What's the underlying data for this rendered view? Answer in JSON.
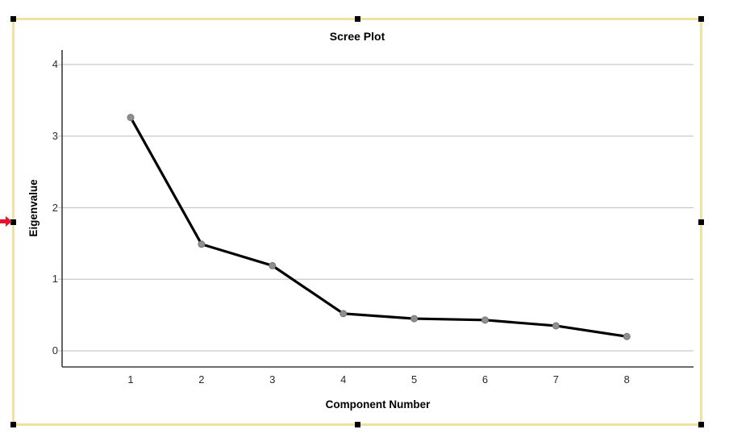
{
  "chart_data": {
    "type": "line",
    "title": "Scree Plot",
    "xlabel": "Component Number",
    "ylabel": "Eigenvalue",
    "x": [
      1,
      2,
      3,
      4,
      5,
      6,
      7,
      8
    ],
    "values": [
      3.26,
      1.49,
      1.19,
      0.52,
      0.45,
      0.43,
      0.35,
      0.2
    ],
    "xticks": [
      "1",
      "2",
      "3",
      "4",
      "5",
      "6",
      "7",
      "8"
    ],
    "yticks": [
      "0",
      "1",
      "2",
      "3",
      "4"
    ],
    "ylim": [
      0,
      4.2
    ],
    "grid": "horizontal-only",
    "legend": "none",
    "line_color": "#000000",
    "marker_color": "#8f8f8f",
    "marker_edge_color": "#767676",
    "gridline_color": "#c9c9c9",
    "axis_color": "#3d3d3d",
    "tick_color": "#2b2b2b"
  },
  "selection": {
    "border_color": "#f0e19e",
    "handle_color": "#000000",
    "arrow_color": "#e8112d",
    "handles": [
      "top-left",
      "top-center",
      "top-right",
      "middle-left",
      "middle-right",
      "bottom-left",
      "bottom-center",
      "bottom-right"
    ]
  }
}
